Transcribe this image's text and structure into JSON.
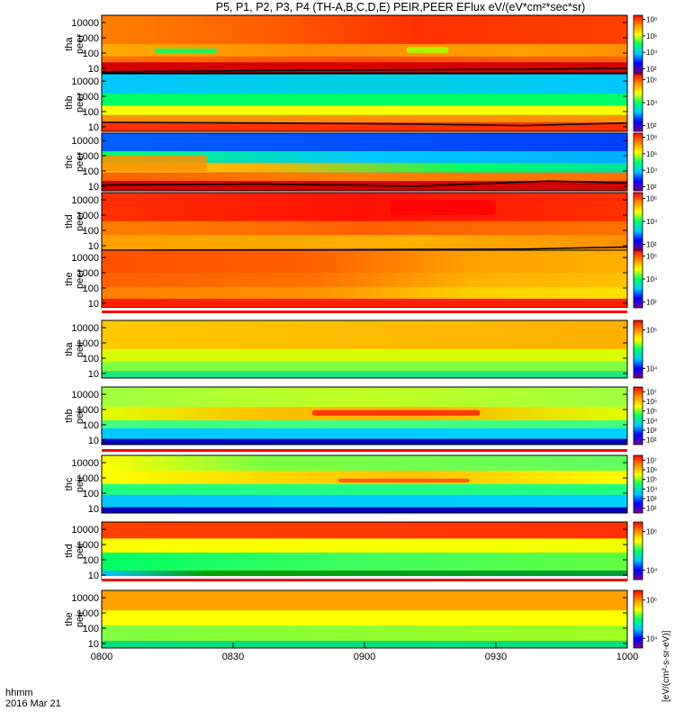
{
  "chart_data": {
    "type": "heatmap",
    "title": "P5, P1, P2, P3, P4 (TH-A,B,C,D,E) PEIR,PEER EFlux eV/(eV*cm²*sec*sr)",
    "x_axis": {
      "ticks": [
        "0800",
        "0830",
        "0900",
        "0930",
        "1000"
      ],
      "range": [
        "08:00",
        "10:00"
      ],
      "label_lines": [
        "hhmm",
        "2016 Mar 21"
      ]
    },
    "y_axis": {
      "scale": "log",
      "range": [
        5,
        30000
      ],
      "ticks": [
        "10",
        "100",
        "1000",
        "10000"
      ]
    },
    "colorbar": {
      "scale": "log",
      "label": "[eV/(cm²-s-sr-eV)]",
      "colors": [
        "#78008c",
        "#0000ff",
        "#00c8ff",
        "#00ff64",
        "#ffff00",
        "#ff8c00",
        "#ff0000"
      ]
    },
    "panels": [
      {
        "line1": "tha",
        "line2": "peer",
        "cbar_ticks": [
          "10²",
          "10⁴",
          "10⁶",
          "10⁸"
        ],
        "bg": "#ff4000",
        "bands": [
          {
            "y0": 5,
            "y1": 25,
            "colors": [
              [
                0,
                "#d40000"
              ],
              [
                1,
                "#d40000"
              ]
            ]
          },
          {
            "y0": 25,
            "y1": 60,
            "colors": [
              [
                0,
                "#ff7000"
              ],
              [
                0.5,
                "#ff5000"
              ],
              [
                1,
                "#ff6000"
              ]
            ]
          },
          {
            "y0": 60,
            "y1": 400,
            "colors": [
              [
                0,
                "#ffaa00"
              ],
              [
                0.4,
                "#ff8c00"
              ],
              [
                0.8,
                "#ffa000"
              ],
              [
                1,
                "#ff9000"
              ]
            ]
          },
          {
            "y0": 400,
            "y1": 30000,
            "colors": [
              [
                0,
                "#ff8000"
              ],
              [
                0.3,
                "#ff6000"
              ],
              [
                0.6,
                "#ff3000"
              ],
              [
                1,
                "#ff4000"
              ]
            ]
          }
        ],
        "blobs": [
          {
            "t0": 0.1,
            "t1": 0.22,
            "y0": 100,
            "y1": 200,
            "color": "#00ff64"
          },
          {
            "t0": 0.58,
            "t1": 0.66,
            "y0": 100,
            "y1": 250,
            "color": "#aaff00"
          }
        ],
        "line": [
          [
            0,
            6
          ],
          [
            0.3,
            7
          ],
          [
            0.6,
            8
          ],
          [
            0.85,
            9
          ],
          [
            1,
            10
          ]
        ]
      },
      {
        "line1": "thb",
        "line2": "peer",
        "cbar_ticks": [
          "10²",
          "10⁴",
          "10⁶"
        ],
        "bg": "#00c8ff",
        "bands": [
          {
            "y0": 5,
            "y1": 20,
            "colors": [
              [
                0,
                "#ff3000"
              ],
              [
                1,
                "#ff3000"
              ]
            ]
          },
          {
            "y0": 20,
            "y1": 60,
            "colors": [
              [
                0,
                "#ff9000"
              ],
              [
                1,
                "#ff9000"
              ]
            ]
          },
          {
            "y0": 60,
            "y1": 250,
            "colors": [
              [
                0,
                "#ffff00"
              ],
              [
                1,
                "#ffff00"
              ]
            ]
          },
          {
            "y0": 250,
            "y1": 1500,
            "colors": [
              [
                0,
                "#00ff64"
              ],
              [
                1,
                "#00ff64"
              ]
            ]
          },
          {
            "y0": 1500,
            "y1": 30000,
            "colors": [
              [
                0,
                "#00c8ff"
              ],
              [
                0.5,
                "#00d0e0"
              ],
              [
                1,
                "#00c8ff"
              ]
            ]
          }
        ],
        "blobs": [],
        "line": [
          [
            0,
            20
          ],
          [
            0.3,
            18
          ],
          [
            0.6,
            15
          ],
          [
            0.8,
            12
          ],
          [
            1,
            18
          ]
        ]
      },
      {
        "line1": "thc",
        "line2": "peer",
        "cbar_ticks": [
          "10²",
          "10⁴",
          "10⁶",
          "10⁸"
        ],
        "bg": "#2060ff",
        "bands": [
          {
            "y0": 5,
            "y1": 22,
            "colors": [
              [
                0,
                "#d00000"
              ],
              [
                1,
                "#d00000"
              ]
            ]
          },
          {
            "y0": 22,
            "y1": 80,
            "colors": [
              [
                0,
                "#ff6000"
              ],
              [
                0.5,
                "#ff8000"
              ],
              [
                1,
                "#ff7000"
              ]
            ]
          },
          {
            "y0": 80,
            "y1": 350,
            "colors": [
              [
                0,
                "#ffd000"
              ],
              [
                0.3,
                "#ffb000"
              ],
              [
                0.7,
                "#00ff64"
              ],
              [
                1,
                "#00e0a0"
              ]
            ]
          },
          {
            "y0": 350,
            "y1": 2000,
            "colors": [
              [
                0,
                "#00ff64"
              ],
              [
                0.5,
                "#00c8ff"
              ],
              [
                1,
                "#00b0ff"
              ]
            ]
          },
          {
            "y0": 2000,
            "y1": 30000,
            "colors": [
              [
                0,
                "#0060ff"
              ],
              [
                1,
                "#0040ff"
              ]
            ]
          }
        ],
        "blobs": [
          {
            "t0": 0,
            "t1": 0.2,
            "y0": 100,
            "y1": 1000,
            "color": "#ff9000"
          }
        ],
        "line": [
          [
            0,
            12
          ],
          [
            0.3,
            14
          ],
          [
            0.6,
            10
          ],
          [
            0.75,
            16
          ],
          [
            0.85,
            22
          ],
          [
            1,
            16
          ]
        ]
      },
      {
        "line1": "thd",
        "line2": "peer",
        "cbar_ticks": [
          "10²",
          "10⁴",
          "10⁶"
        ],
        "bg": "#ff2000",
        "bands": [
          {
            "y0": 5,
            "y1": 50,
            "colors": [
              [
                0,
                "#ffa000"
              ],
              [
                0.6,
                "#ffb000"
              ],
              [
                1,
                "#ff9000"
              ]
            ]
          },
          {
            "y0": 50,
            "y1": 400,
            "colors": [
              [
                0,
                "#ff8000"
              ],
              [
                0.5,
                "#ff6000"
              ],
              [
                1,
                "#ff7000"
              ]
            ]
          },
          {
            "y0": 400,
            "y1": 30000,
            "colors": [
              [
                0,
                "#ff3000"
              ],
              [
                0.5,
                "#ff1000"
              ],
              [
                1,
                "#ff3000"
              ]
            ]
          }
        ],
        "blobs": [
          {
            "t0": 0.55,
            "t1": 0.75,
            "y0": 1000,
            "y1": 10000,
            "color": "#ff0000"
          }
        ],
        "line": [
          [
            0,
            5
          ],
          [
            0.5,
            5.5
          ],
          [
            0.8,
            6
          ],
          [
            1,
            8
          ]
        ]
      },
      {
        "line1": "the",
        "line2": "peer",
        "cbar_ticks": [
          "10²",
          "10⁴",
          "10⁶"
        ],
        "bg": "#ff8000",
        "bands": [
          {
            "y0": 5,
            "y1": 20,
            "colors": [
              [
                0,
                "#ff2000"
              ],
              [
                1,
                "#ff2000"
              ]
            ]
          },
          {
            "y0": 20,
            "y1": 120,
            "colors": [
              [
                0,
                "#ff8000"
              ],
              [
                0.4,
                "#ff9000"
              ],
              [
                0.7,
                "#ffd000"
              ],
              [
                1,
                "#ffe000"
              ]
            ]
          },
          {
            "y0": 120,
            "y1": 1000,
            "colors": [
              [
                0,
                "#ff6000"
              ],
              [
                0.4,
                "#ff7000"
              ],
              [
                0.7,
                "#ffb000"
              ],
              [
                1,
                "#ffc000"
              ]
            ]
          },
          {
            "y0": 1000,
            "y1": 30000,
            "colors": [
              [
                0,
                "#ff5000"
              ],
              [
                0.4,
                "#ff6000"
              ],
              [
                0.7,
                "#ffa000"
              ],
              [
                1,
                "#ffb000"
              ]
            ]
          }
        ],
        "blobs": [],
        "line": null
      },
      {
        "line1": "tha",
        "line2": "peir",
        "cbar_ticks": [
          "10⁴",
          "10⁶"
        ],
        "bg": "#ffd000",
        "bands": [
          {
            "y0": 5,
            "y1": 15,
            "colors": [
              [
                0,
                "#20e880"
              ],
              [
                1,
                "#20e880"
              ]
            ]
          },
          {
            "y0": 15,
            "y1": 60,
            "colors": [
              [
                0,
                "#80ff40"
              ],
              [
                1,
                "#80ff40"
              ]
            ]
          },
          {
            "y0": 60,
            "y1": 400,
            "colors": [
              [
                0,
                "#d8ff00"
              ],
              [
                1,
                "#d8ff00"
              ]
            ]
          },
          {
            "y0": 400,
            "y1": 30000,
            "colors": [
              [
                0,
                "#ffc800"
              ],
              [
                1,
                "#ffb000"
              ]
            ]
          }
        ],
        "blobs": [],
        "line": null
      },
      {
        "line1": "thb",
        "line2": "peir",
        "cbar_ticks": [
          "10²",
          "10³",
          "10⁴",
          "10⁵",
          "10⁶",
          "10⁷"
        ],
        "bg": "#ffff00",
        "bands": [
          {
            "y0": 5,
            "y1": 12,
            "colors": [
              [
                0,
                "#0000c0"
              ],
              [
                1,
                "#0000c0"
              ]
            ]
          },
          {
            "y0": 12,
            "y1": 60,
            "colors": [
              [
                0,
                "#00c8ff"
              ],
              [
                1,
                "#00d0ff"
              ]
            ]
          },
          {
            "y0": 60,
            "y1": 200,
            "colors": [
              [
                0,
                "#40ff80"
              ],
              [
                1,
                "#40ff80"
              ]
            ]
          },
          {
            "y0": 200,
            "y1": 1500,
            "colors": [
              [
                0,
                "#e0ff00"
              ],
              [
                0.3,
                "#ffc000"
              ],
              [
                0.6,
                "#ffb000"
              ],
              [
                1,
                "#e0ff00"
              ]
            ]
          },
          {
            "y0": 1500,
            "y1": 30000,
            "colors": [
              [
                0,
                "#a0ff40"
              ],
              [
                0.5,
                "#c0ff20"
              ],
              [
                1,
                "#a0ff40"
              ]
            ]
          }
        ],
        "blobs": [
          {
            "t0": 0.4,
            "t1": 0.72,
            "y0": 400,
            "y1": 900,
            "color": "#ff2000"
          }
        ],
        "line": null
      },
      {
        "line1": "thc",
        "line2": "peir",
        "cbar_ticks": [
          "10²",
          "10³",
          "10⁴",
          "10⁵",
          "10⁶",
          "10⁷"
        ],
        "bg": "#e0ff00",
        "bands": [
          {
            "y0": 5,
            "y1": 12,
            "colors": [
              [
                0,
                "#0000c0"
              ],
              [
                1,
                "#0000c0"
              ]
            ]
          },
          {
            "y0": 12,
            "y1": 80,
            "colors": [
              [
                0,
                "#00c8ff"
              ],
              [
                1,
                "#00d0ff"
              ]
            ]
          },
          {
            "y0": 80,
            "y1": 400,
            "colors": [
              [
                0,
                "#20ff80"
              ],
              [
                1,
                "#20ff80"
              ]
            ]
          },
          {
            "y0": 400,
            "y1": 3000,
            "colors": [
              [
                0,
                "#ffff00"
              ],
              [
                0.4,
                "#ffd000"
              ],
              [
                0.6,
                "#ffc000"
              ],
              [
                1,
                "#ffff00"
              ]
            ]
          },
          {
            "y0": 3000,
            "y1": 30000,
            "colors": [
              [
                0,
                "#ffff00"
              ],
              [
                0.3,
                "#80ff40"
              ],
              [
                1,
                "#60ff60"
              ]
            ]
          }
        ],
        "blobs": [
          {
            "t0": 0.45,
            "t1": 0.7,
            "y0": 500,
            "y1": 900,
            "color": "#ff5000"
          }
        ],
        "line": null
      },
      {
        "line1": "thd",
        "line2": "peir",
        "cbar_ticks": [
          "10⁴",
          "10⁶"
        ],
        "bg": "#ffb000",
        "bands": [
          {
            "y0": 5,
            "y1": 20,
            "colors": [
              [
                0,
                "#00c8ff"
              ],
              [
                0.2,
                "#00a000"
              ],
              [
                1,
                "#00a040"
              ]
            ]
          },
          {
            "y0": 20,
            "y1": 300,
            "colors": [
              [
                0,
                "#00ff64"
              ],
              [
                0.5,
                "#40ff60"
              ],
              [
                1,
                "#60ff40"
              ]
            ]
          },
          {
            "y0": 300,
            "y1": 2500,
            "colors": [
              [
                0,
                "#ffff00"
              ],
              [
                1,
                "#f0ff00"
              ]
            ]
          },
          {
            "y0": 2500,
            "y1": 30000,
            "colors": [
              [
                0,
                "#ff4000"
              ],
              [
                1,
                "#ff3000"
              ]
            ]
          }
        ],
        "blobs": [],
        "line": null
      },
      {
        "line1": "the",
        "line2": "peir",
        "cbar_ticks": [
          "10⁴",
          "10⁶"
        ],
        "bg": "#ffd000",
        "bands": [
          {
            "y0": 5,
            "y1": 15,
            "colors": [
              [
                0,
                "#00e080"
              ],
              [
                1,
                "#00e080"
              ]
            ]
          },
          {
            "y0": 15,
            "y1": 150,
            "colors": [
              [
                0,
                "#80ff40"
              ],
              [
                1,
                "#a0ff20"
              ]
            ]
          },
          {
            "y0": 150,
            "y1": 1500,
            "colors": [
              [
                0,
                "#ffff00"
              ],
              [
                1,
                "#ffff00"
              ]
            ]
          },
          {
            "y0": 1500,
            "y1": 30000,
            "colors": [
              [
                0,
                "#ffa000"
              ],
              [
                1,
                "#ffa000"
              ]
            ]
          }
        ],
        "blobs": [],
        "line": null
      }
    ]
  }
}
